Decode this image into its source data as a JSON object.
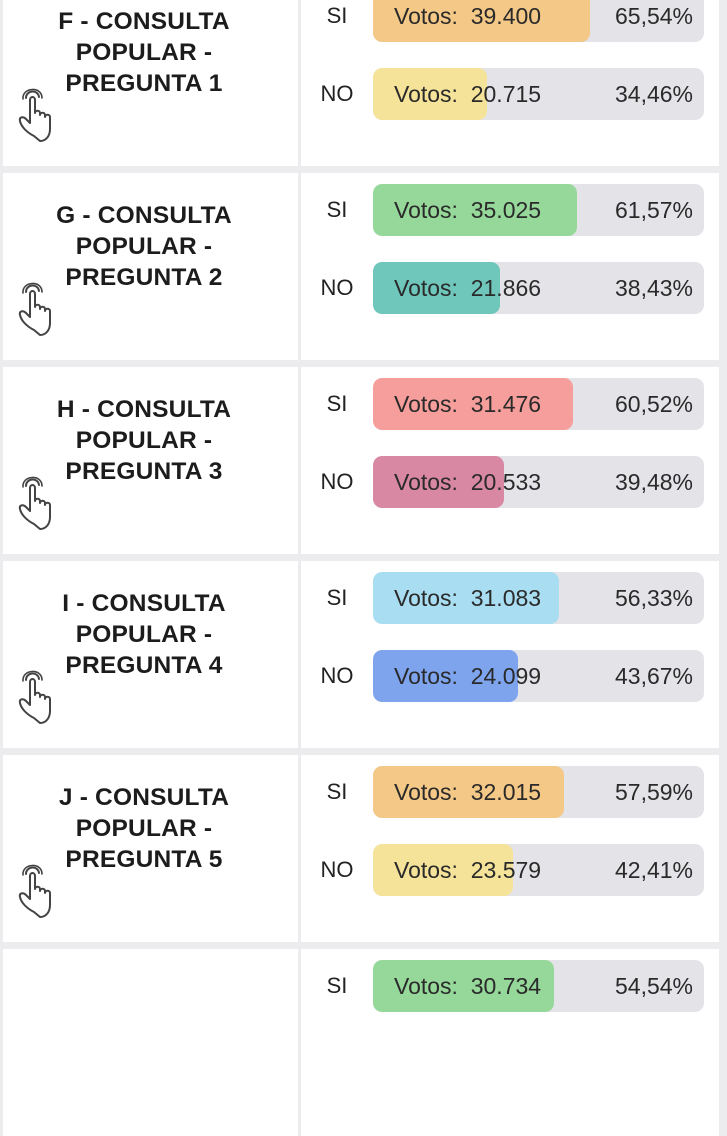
{
  "votes_prefix": "Votos:",
  "questions": [
    {
      "title_lines": [
        "F - CONSULTA",
        "POPULAR -",
        "PREGUNTA 1"
      ],
      "options": [
        {
          "label": "SI",
          "votes": "39.400",
          "percent": "65,54%",
          "share": 0.6554,
          "color": "#f4c886"
        },
        {
          "label": "NO",
          "votes": "20.715",
          "percent": "34,46%",
          "share": 0.3446,
          "color": "#f6e39a"
        }
      ]
    },
    {
      "title_lines": [
        "G - CONSULTA",
        "POPULAR -",
        "PREGUNTA 2"
      ],
      "options": [
        {
          "label": "SI",
          "votes": "35.025",
          "percent": "61,57%",
          "share": 0.6157,
          "color": "#96d89a"
        },
        {
          "label": "NO",
          "votes": "21.866",
          "percent": "38,43%",
          "share": 0.3843,
          "color": "#6fc7bc"
        }
      ]
    },
    {
      "title_lines": [
        "H - CONSULTA",
        "POPULAR -",
        "PREGUNTA 3"
      ],
      "options": [
        {
          "label": "SI",
          "votes": "31.476",
          "percent": "60,52%",
          "share": 0.6052,
          "color": "#f59e9b"
        },
        {
          "label": "NO",
          "votes": "20.533",
          "percent": "39,48%",
          "share": 0.3948,
          "color": "#d988a4"
        }
      ]
    },
    {
      "title_lines": [
        "I - CONSULTA",
        "POPULAR -",
        "PREGUNTA 4"
      ],
      "options": [
        {
          "label": "SI",
          "votes": "31.083",
          "percent": "56,33%",
          "share": 0.5633,
          "color": "#a9ddf2"
        },
        {
          "label": "NO",
          "votes": "24.099",
          "percent": "43,67%",
          "share": 0.4367,
          "color": "#7ea4ee"
        }
      ]
    },
    {
      "title_lines": [
        "J - CONSULTA",
        "POPULAR -",
        "PREGUNTA 5"
      ],
      "options": [
        {
          "label": "SI",
          "votes": "32.015",
          "percent": "57,59%",
          "share": 0.5759,
          "color": "#f4c886"
        },
        {
          "label": "NO",
          "votes": "23.579",
          "percent": "42,41%",
          "share": 0.4241,
          "color": "#f6e39a"
        }
      ]
    },
    {
      "title_lines": [],
      "options": [
        {
          "label": "SI",
          "votes": "30.734",
          "percent": "54,54%",
          "share": 0.5454,
          "color": "#96d89a"
        }
      ]
    }
  ]
}
